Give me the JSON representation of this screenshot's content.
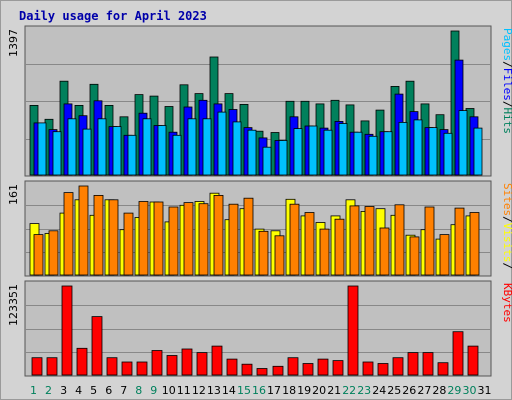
{
  "title": "Daily usage for April 2023",
  "colors": {
    "title": "#0000aa",
    "plot_bg": "#c0c0c0",
    "grid": "#888888",
    "pages": "#00c0ff",
    "files": "#0000ff",
    "hits": "#00805c",
    "sites": "#ff8000",
    "visits": "#ffff00",
    "kbytes": "#ff0000",
    "weekday_label": "#000000",
    "weekend_label": "#00805c"
  },
  "chart_data": [
    {
      "type": "bar",
      "name": "top_panel",
      "y_tick_label": "1397",
      "legend": [
        {
          "text": "Pages",
          "color": "#00c0ff"
        },
        {
          "text": "/",
          "color": "#000000"
        },
        {
          "text": "Files",
          "color": "#0000ff"
        },
        {
          "text": "/",
          "color": "#000000"
        },
        {
          "text": "Hits",
          "color": "#00805c"
        }
      ],
      "ylim": [
        0,
        1397
      ],
      "series": [
        {
          "name": "Hits",
          "values": [
            675,
            540,
            910,
            675,
            880,
            675,
            565,
            780,
            765,
            665,
            875,
            790,
            1145,
            790,
            685,
            425,
            412,
            715,
            715,
            690,
            725,
            680,
            525,
            630,
            860,
            910,
            690,
            585,
            1397,
            645,
            0
          ]
        },
        {
          "name": "Files",
          "values": [
            505,
            440,
            690,
            575,
            720,
            470,
            385,
            600,
            480,
            415,
            660,
            725,
            690,
            635,
            460,
            360,
            335,
            565,
            475,
            455,
            520,
            415,
            395,
            420,
            785,
            615,
            460,
            440,
            1115,
            565,
            0
          ]
        },
        {
          "name": "Pages",
          "values": [
            505,
            420,
            545,
            445,
            545,
            470,
            385,
            545,
            480,
            385,
            545,
            545,
            610,
            515,
            435,
            270,
            335,
            450,
            475,
            435,
            500,
            415,
            375,
            420,
            510,
            535,
            460,
            405,
            625,
            455,
            0
          ]
        }
      ]
    },
    {
      "type": "bar",
      "name": "middle_panel",
      "y_tick_label": "161",
      "legend": [
        {
          "text": "Sites",
          "color": "#ff8000"
        },
        {
          "text": "/",
          "color": "#000000"
        },
        {
          "text": "Visits",
          "color": "#ffff00"
        },
        {
          "text": "/",
          "color": "#000000"
        }
      ],
      "ylim": [
        0,
        161
      ],
      "series": [
        {
          "name": "Visits",
          "values": [
            93,
            75,
            112,
            136,
            108,
            136,
            82,
            104,
            132,
            96,
            126,
            133,
            148,
            100,
            120,
            83,
            80,
            137,
            107,
            95,
            107,
            136,
            115,
            120,
            108,
            72,
            82,
            65,
            91,
            107,
            0
          ]
        },
        {
          "name": "Sites",
          "values": [
            73,
            80,
            149,
            161,
            144,
            136,
            112,
            133,
            132,
            123,
            131,
            129,
            144,
            128,
            139,
            79,
            71,
            128,
            113,
            83,
            101,
            125,
            124,
            85,
            127,
            69,
            123,
            73,
            121,
            113,
            0
          ]
        }
      ]
    },
    {
      "type": "bar",
      "name": "bottom_panel",
      "y_tick_label": "123351",
      "legend": [
        {
          "text": "KBytes",
          "color": "#ff0000"
        }
      ],
      "ylim": [
        0,
        123351
      ],
      "series": [
        {
          "name": "KBytes",
          "values": [
            24000,
            24000,
            123351,
            37000,
            81000,
            24000,
            18000,
            18000,
            34000,
            27000,
            36000,
            31000,
            40000,
            22000,
            15000,
            9000,
            12000,
            24000,
            16000,
            22000,
            20000,
            123351,
            18000,
            16000,
            24000,
            31000,
            31000,
            17000,
            60000,
            40000,
            0
          ]
        }
      ]
    }
  ],
  "x_labels": [
    {
      "label": "1",
      "weekend": true
    },
    {
      "label": "2",
      "weekend": true
    },
    {
      "label": "3",
      "weekend": false
    },
    {
      "label": "4",
      "weekend": false
    },
    {
      "label": "5",
      "weekend": false
    },
    {
      "label": "6",
      "weekend": false
    },
    {
      "label": "7",
      "weekend": false
    },
    {
      "label": "8",
      "weekend": true
    },
    {
      "label": "9",
      "weekend": true
    },
    {
      "label": "10",
      "weekend": false
    },
    {
      "label": "11",
      "weekend": false
    },
    {
      "label": "12",
      "weekend": false
    },
    {
      "label": "13",
      "weekend": false
    },
    {
      "label": "14",
      "weekend": false
    },
    {
      "label": "15",
      "weekend": true
    },
    {
      "label": "16",
      "weekend": true
    },
    {
      "label": "17",
      "weekend": false
    },
    {
      "label": "18",
      "weekend": false
    },
    {
      "label": "19",
      "weekend": false
    },
    {
      "label": "20",
      "weekend": false
    },
    {
      "label": "21",
      "weekend": false
    },
    {
      "label": "22",
      "weekend": true
    },
    {
      "label": "23",
      "weekend": true
    },
    {
      "label": "24",
      "weekend": false
    },
    {
      "label": "25",
      "weekend": false
    },
    {
      "label": "26",
      "weekend": false
    },
    {
      "label": "27",
      "weekend": false
    },
    {
      "label": "28",
      "weekend": false
    },
    {
      "label": "29",
      "weekend": true
    },
    {
      "label": "30",
      "weekend": true
    },
    {
      "label": "31",
      "weekend": false
    }
  ]
}
